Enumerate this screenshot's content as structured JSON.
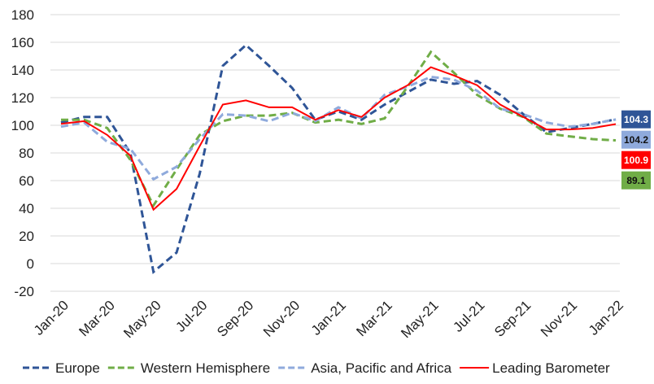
{
  "chart_data": {
    "type": "line",
    "categories": [
      "Jan-20",
      null,
      "Mar-20",
      null,
      "May-20",
      null,
      "Jul-20",
      null,
      "Sep-20",
      null,
      "Nov-20",
      null,
      "Jan-21",
      null,
      "Mar-21",
      null,
      "May-21",
      null,
      "Jul-21",
      null,
      "Sep-21",
      null,
      "Nov-21",
      null,
      "Jan-22"
    ],
    "series": [
      {
        "name": "Europe",
        "color": "#2f5597",
        "dashed": true,
        "values": [
          102,
          106,
          106,
          80,
          -6,
          8,
          65,
          143,
          158,
          143,
          127,
          104,
          110,
          104,
          115,
          124,
          133,
          130,
          132,
          122,
          108,
          95,
          98,
          101,
          104.3
        ]
      },
      {
        "name": "Western Hemisphere",
        "color": "#70ad47",
        "dashed": true,
        "values": [
          104,
          104,
          98,
          75,
          42,
          68,
          93,
          103,
          107,
          107,
          109,
          102,
          104,
          101,
          105,
          128,
          153,
          138,
          122,
          112,
          106,
          94,
          92,
          90,
          89.1
        ]
      },
      {
        "name": "Asia, Pacific and Africa",
        "color": "#8faadc",
        "dashed": true,
        "values": [
          99,
          102,
          88,
          83,
          61,
          70,
          90,
          108,
          107,
          103,
          109,
          103,
          113,
          105,
          122,
          128,
          135,
          133,
          125,
          112,
          108,
          102,
          99,
          101,
          104.2
        ]
      },
      {
        "name": "Leading Barometer",
        "color": "#ff0000",
        "dashed": false,
        "values": [
          101,
          103,
          93,
          78,
          39,
          54,
          85,
          115,
          118,
          113,
          113,
          104,
          111,
          106,
          120,
          129,
          142,
          136,
          129,
          115,
          106,
          97,
          97,
          98,
          100.9
        ]
      }
    ],
    "ylim": [
      -20,
      180
    ],
    "yticks": [
      -20,
      0,
      20,
      40,
      60,
      80,
      100,
      120,
      140,
      160,
      180
    ],
    "grid": true,
    "end_labels": true,
    "legend": "bottom"
  }
}
